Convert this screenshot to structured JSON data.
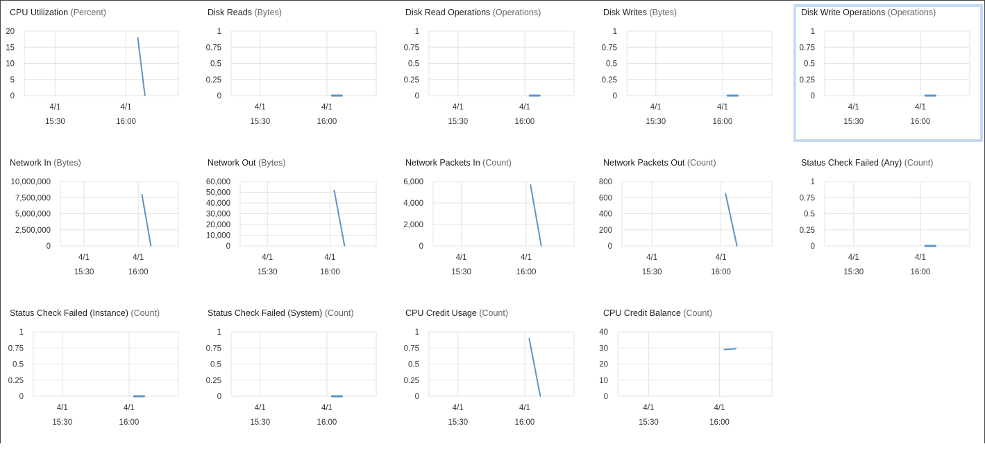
{
  "chart_data": [
    {
      "id": "cpu-utilization",
      "title": "CPU Utilization",
      "unit": "(Percent)",
      "type": "line",
      "yticks": [
        "20",
        "15",
        "10",
        "5",
        "0"
      ],
      "ylim": [
        0,
        20
      ],
      "xticks": [
        {
          "date": "4/1",
          "time": "15:30"
        },
        {
          "date": "4/1",
          "time": "16:00"
        }
      ],
      "series": [
        {
          "x": [
            "16:05",
            "16:08"
          ],
          "y": [
            18,
            0
          ]
        }
      ]
    },
    {
      "id": "disk-reads",
      "title": "Disk Reads",
      "unit": "(Bytes)",
      "type": "line",
      "yticks": [
        "1",
        "0.75",
        "0.5",
        "0.25",
        "0"
      ],
      "ylim": [
        0,
        1
      ],
      "xticks": [
        {
          "date": "4/1",
          "time": "15:30"
        },
        {
          "date": "4/1",
          "time": "16:00"
        }
      ],
      "series": [
        {
          "x": [
            "16:02",
            "16:07"
          ],
          "y": [
            0,
            0
          ]
        }
      ]
    },
    {
      "id": "disk-read-operations",
      "title": "Disk Read Operations",
      "unit": "(Operations)",
      "type": "line",
      "selected": true,
      "yticks": [
        "1",
        "0.75",
        "0.5",
        "0.25",
        "0"
      ],
      "ylim": [
        0,
        1
      ],
      "xticks": [
        {
          "date": "4/1",
          "time": "15:30"
        },
        {
          "date": "4/1",
          "time": "16:00"
        }
      ],
      "series": [
        {
          "x": [
            "16:02",
            "16:07"
          ],
          "y": [
            0,
            0
          ]
        }
      ]
    },
    {
      "id": "disk-writes",
      "title": "Disk Writes",
      "unit": "(Bytes)",
      "type": "line",
      "yticks": [
        "1",
        "0.75",
        "0.5",
        "0.25",
        "0"
      ],
      "ylim": [
        0,
        1
      ],
      "xticks": [
        {
          "date": "4/1",
          "time": "15:30"
        },
        {
          "date": "4/1",
          "time": "16:00"
        }
      ],
      "series": [
        {
          "x": [
            "16:02",
            "16:07"
          ],
          "y": [
            0,
            0
          ]
        }
      ]
    },
    {
      "id": "disk-write-operations",
      "title": "Disk Write Operations",
      "unit": "(Operations)",
      "type": "line",
      "yticks": [
        "1",
        "0.75",
        "0.5",
        "0.25",
        "0"
      ],
      "ylim": [
        0,
        1
      ],
      "xticks": [
        {
          "date": "4/1",
          "time": "15:30"
        },
        {
          "date": "4/1",
          "time": "16:00"
        }
      ],
      "series": [
        {
          "x": [
            "16:02",
            "16:07"
          ],
          "y": [
            0,
            0
          ]
        }
      ]
    },
    {
      "id": "network-in",
      "title": "Network In",
      "unit": "(Bytes)",
      "type": "line",
      "yticks": [
        "10,000,000",
        "7,500,000",
        "5,000,000",
        "2,500,000",
        "0"
      ],
      "ylim": [
        0,
        10000000
      ],
      "xticks": [
        {
          "date": "4/1",
          "time": "15:30"
        },
        {
          "date": "4/1",
          "time": "16:00"
        }
      ],
      "series": [
        {
          "x": [
            "16:02",
            "16:07"
          ],
          "y": [
            8000000,
            0
          ]
        }
      ]
    },
    {
      "id": "network-out",
      "title": "Network Out",
      "unit": "(Bytes)",
      "type": "line",
      "yticks": [
        "60,000",
        "50,000",
        "40,000",
        "30,000",
        "20,000",
        "10,000",
        "0"
      ],
      "ylim": [
        0,
        60000
      ],
      "xticks": [
        {
          "date": "4/1",
          "time": "15:30"
        },
        {
          "date": "4/1",
          "time": "16:00"
        }
      ],
      "series": [
        {
          "x": [
            "16:02",
            "16:07"
          ],
          "y": [
            52000,
            0
          ]
        }
      ]
    },
    {
      "id": "network-packets-in",
      "title": "Network Packets In",
      "unit": "(Count)",
      "type": "line",
      "yticks": [
        "6,000",
        "4,000",
        "2,000",
        "0"
      ],
      "ylim": [
        0,
        6000
      ],
      "xticks": [
        {
          "date": "4/1",
          "time": "15:30"
        },
        {
          "date": "4/1",
          "time": "16:00"
        }
      ],
      "series": [
        {
          "x": [
            "16:02",
            "16:07"
          ],
          "y": [
            5700,
            0
          ]
        }
      ]
    },
    {
      "id": "network-packets-out",
      "title": "Network Packets Out",
      "unit": "(Count)",
      "type": "line",
      "yticks": [
        "800",
        "600",
        "400",
        "200",
        "0"
      ],
      "ylim": [
        0,
        800
      ],
      "xticks": [
        {
          "date": "4/1",
          "time": "15:30"
        },
        {
          "date": "4/1",
          "time": "16:00"
        }
      ],
      "series": [
        {
          "x": [
            "16:02",
            "16:07"
          ],
          "y": [
            650,
            0
          ]
        }
      ]
    },
    {
      "id": "status-check-failed-any",
      "title": "Status Check Failed (Any)",
      "unit": "(Count)",
      "type": "line",
      "yticks": [
        "1",
        "0.75",
        "0.5",
        "0.25",
        "0"
      ],
      "ylim": [
        0,
        1
      ],
      "xticks": [
        {
          "date": "4/1",
          "time": "15:30"
        },
        {
          "date": "4/1",
          "time": "16:00"
        }
      ],
      "series": [
        {
          "x": [
            "16:02",
            "16:07"
          ],
          "y": [
            0,
            0
          ]
        }
      ]
    },
    {
      "id": "status-check-failed-instance",
      "title": "Status Check Failed (Instance)",
      "unit": "(Count)",
      "type": "line",
      "yticks": [
        "1",
        "0.75",
        "0.5",
        "0.25",
        "0"
      ],
      "ylim": [
        0,
        1
      ],
      "xticks": [
        {
          "date": "4/1",
          "time": "15:30"
        },
        {
          "date": "4/1",
          "time": "16:00"
        }
      ],
      "series": [
        {
          "x": [
            "16:02",
            "16:07"
          ],
          "y": [
            0,
            0
          ]
        }
      ]
    },
    {
      "id": "status-check-failed-system",
      "title": "Status Check Failed (System)",
      "unit": "(Count)",
      "type": "line",
      "yticks": [
        "1",
        "0.75",
        "0.5",
        "0.25",
        "0"
      ],
      "ylim": [
        0,
        1
      ],
      "xticks": [
        {
          "date": "4/1",
          "time": "15:30"
        },
        {
          "date": "4/1",
          "time": "16:00"
        }
      ],
      "series": [
        {
          "x": [
            "16:02",
            "16:07"
          ],
          "y": [
            0,
            0
          ]
        }
      ]
    },
    {
      "id": "cpu-credit-usage",
      "title": "CPU Credit Usage",
      "unit": "(Count)",
      "type": "line",
      "yticks": [
        "1",
        "0.75",
        "0.5",
        "0.25",
        "0"
      ],
      "ylim": [
        0,
        1
      ],
      "xticks": [
        {
          "date": "4/1",
          "time": "15:30"
        },
        {
          "date": "4/1",
          "time": "16:00"
        }
      ],
      "series": [
        {
          "x": [
            "16:02",
            "16:07"
          ],
          "y": [
            0.9,
            0
          ]
        }
      ]
    },
    {
      "id": "cpu-credit-balance",
      "title": "CPU Credit Balance",
      "unit": "(Count)",
      "type": "line",
      "yticks": [
        "40",
        "30",
        "20",
        "10",
        "0"
      ],
      "ylim": [
        0,
        40
      ],
      "xticks": [
        {
          "date": "4/1",
          "time": "15:30"
        },
        {
          "date": "4/1",
          "time": "16:00"
        }
      ],
      "series": [
        {
          "x": [
            "16:02",
            "16:07"
          ],
          "y": [
            29,
            29.5
          ]
        }
      ]
    }
  ],
  "colors": {
    "series": "#5b95c8",
    "grid": "#e3e3e3",
    "selected_border": "#c6dbf3"
  }
}
